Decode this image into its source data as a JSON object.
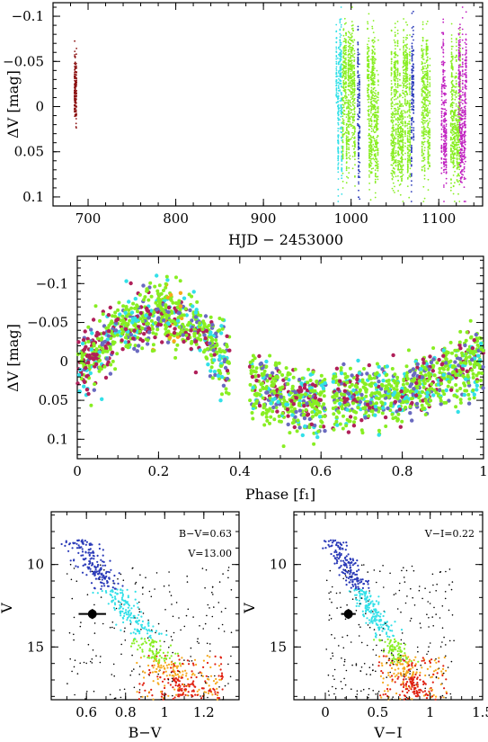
{
  "colors": {
    "dark_red": "#8b1010",
    "cyan": "#33e0e8",
    "blue": "#2a3ab8",
    "green": "#88ee22",
    "magenta": "#c020c0",
    "crimson": "#b0205a",
    "slate": "#6a6ac0",
    "orange": "#f5a81a",
    "red": "#e02010",
    "black": "#000000"
  },
  "chart_data": [
    {
      "id": "timeseries",
      "type": "scatter",
      "xlabel": "HJD − 2453000",
      "ylabel": "ΔV [mag]",
      "xlim": [
        660,
        1150
      ],
      "ylim": [
        0.11,
        -0.115
      ],
      "x_ticks": [
        700,
        800,
        900,
        1000,
        1100
      ],
      "y_ticks": [
        -0.1,
        -0.05,
        0,
        0.05,
        0.1
      ],
      "x_tick_labels": [
        "700",
        "800",
        "900",
        "1000",
        "1100"
      ],
      "y_tick_labels": [
        "−0.1",
        "−0.05",
        "0",
        "0.05",
        "0.1"
      ],
      "observing_runs": [
        {
          "hjd_start": 684,
          "hjd_end": 687,
          "color": "dark_red"
        },
        {
          "hjd_start": 983,
          "hjd_end": 990,
          "color": "cyan"
        },
        {
          "hjd_start": 990,
          "hjd_end": 1005,
          "color": "green"
        },
        {
          "hjd_start": 1007,
          "hjd_end": 1010,
          "color": "blue"
        },
        {
          "hjd_start": 1018,
          "hjd_end": 1031,
          "color": "green"
        },
        {
          "hjd_start": 1045,
          "hjd_end": 1068,
          "color": "green"
        },
        {
          "hjd_start": 1068,
          "hjd_end": 1072,
          "color": "blue"
        },
        {
          "hjd_start": 1080,
          "hjd_end": 1090,
          "color": "green"
        },
        {
          "hjd_start": 1103,
          "hjd_end": 1109,
          "color": "magenta"
        },
        {
          "hjd_start": 1113,
          "hjd_end": 1125,
          "color": "green"
        },
        {
          "hjd_start": 1122,
          "hjd_end": 1132,
          "color": "magenta"
        }
      ]
    },
    {
      "id": "phase",
      "type": "scatter",
      "xlabel": "Phase [f₁]",
      "ylabel": "ΔV [mag]",
      "xlim": [
        0,
        1
      ],
      "ylim": [
        0.125,
        -0.135
      ],
      "x_ticks": [
        0,
        0.2,
        0.4,
        0.6,
        0.8,
        1
      ],
      "y_ticks": [
        -0.1,
        -0.05,
        0,
        0.05,
        0.1
      ],
      "x_tick_labels": [
        "0",
        "0.2",
        "0.4",
        "0.6",
        "0.8",
        "1"
      ],
      "y_tick_labels": [
        "−0.1",
        "−0.05",
        "0",
        "0.05",
        "0.1"
      ],
      "phased_curve": {
        "phase": [
          0,
          0.1,
          0.2,
          0.3,
          0.4,
          0.5,
          0.6,
          0.7,
          0.8,
          0.9,
          1.0
        ],
        "mean_dv": [
          0.01,
          -0.04,
          -0.065,
          -0.04,
          0.02,
          0.045,
          0.05,
          0.045,
          0.04,
          0.02,
          -0.005
        ],
        "scatter": 0.035
      }
    },
    {
      "id": "cmd_bv",
      "type": "scatter",
      "xlabel": "B−V",
      "ylabel": "V",
      "xlim": [
        0.42,
        1.38
      ],
      "ylim": [
        18.2,
        6.8
      ],
      "x_ticks": [
        0.6,
        0.8,
        1,
        1.2
      ],
      "y_ticks": [
        10,
        15
      ],
      "x_tick_labels": [
        "0.6",
        "0.8",
        "1",
        "1.2"
      ],
      "y_tick_labels": [
        "10",
        "15"
      ],
      "annotations": [
        "B−V=0.63",
        "V=13.00"
      ],
      "highlight_star": {
        "x": 0.63,
        "y": 13.0,
        "xerr": 0.07,
        "yerr": 0.3
      }
    },
    {
      "id": "cmd_vi",
      "type": "scatter",
      "xlabel": "V−I",
      "ylabel": "V",
      "xlim": [
        -0.3,
        1.5
      ],
      "ylim": [
        18.2,
        6.8
      ],
      "x_ticks": [
        0,
        0.5,
        1,
        1.5
      ],
      "y_ticks": [
        10,
        15
      ],
      "x_tick_labels": [
        "0",
        "0.5",
        "1",
        "1.5"
      ],
      "y_tick_labels": [
        "10",
        "15"
      ],
      "annotations": [
        "V−I=0.22"
      ],
      "highlight_star": {
        "x": 0.22,
        "y": 13.0,
        "xerr": 0.07,
        "yerr": 0.3
      }
    }
  ]
}
